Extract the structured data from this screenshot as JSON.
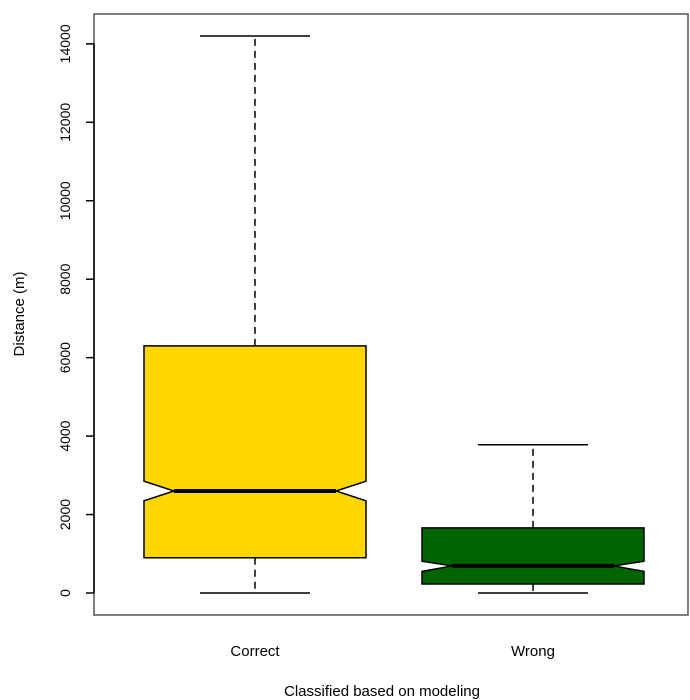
{
  "chart_data": {
    "type": "boxplot",
    "notched": true,
    "categories": [
      "Correct",
      "Wrong"
    ],
    "boxes": [
      {
        "category": "Correct",
        "whisker_low": 0,
        "q1": 900,
        "notch_low": 2350,
        "median": 2600,
        "notch_high": 2850,
        "q3": 6300,
        "whisker_high": 14200,
        "color": "#FFD700"
      },
      {
        "category": "Wrong",
        "whisker_low": 0,
        "q1": 230,
        "notch_low": 550,
        "median": 690,
        "notch_high": 810,
        "q3": 1660,
        "whisker_high": 3780,
        "color": "#006400"
      }
    ],
    "xlabel": "Classified based on modeling",
    "ylabel": "Distance (m)",
    "yticks": [
      0,
      2000,
      4000,
      6000,
      8000,
      10000,
      12000,
      14000
    ],
    "ylim": [
      -600,
      14800
    ],
    "grid": false,
    "legend": "none"
  }
}
